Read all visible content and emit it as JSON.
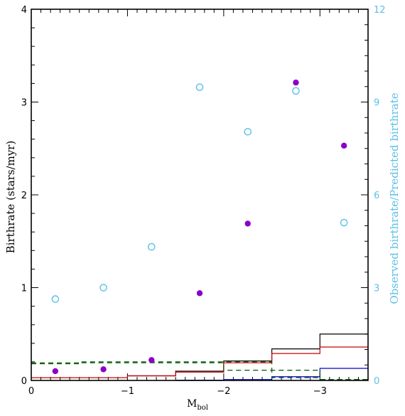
{
  "chart_data": {
    "type": "scatter",
    "xlabel": "M",
    "xlabel_sub": "bol",
    "ylabel_left": "Birthrate (stars/myr)",
    "ylabel_right": "Observed birthrate/Predicted birthrate",
    "xlim": [
      0,
      -3.5
    ],
    "ylim_left": [
      0,
      4
    ],
    "ylim_right": [
      0,
      12
    ],
    "x_ticks": [
      {
        "value": 0,
        "label": "0"
      },
      {
        "value": -1,
        "label": "−1"
      },
      {
        "value": -2,
        "label": "−2"
      },
      {
        "value": -3,
        "label": "−3"
      }
    ],
    "y_left_ticks": [
      {
        "value": 0,
        "label": "0"
      },
      {
        "value": 1,
        "label": "1"
      },
      {
        "value": 2,
        "label": "2"
      },
      {
        "value": 3,
        "label": "3"
      },
      {
        "value": 4,
        "label": "4"
      }
    ],
    "y_right_ticks": [
      {
        "value": 0,
        "label": "0"
      },
      {
        "value": 3,
        "label": "3"
      },
      {
        "value": 6,
        "label": "6"
      },
      {
        "value": 9,
        "label": "9"
      },
      {
        "value": 12,
        "label": "12"
      }
    ],
    "grid": false,
    "colors": {
      "observed": "#8b00c8",
      "ratio": "#5bc0e8",
      "black_hist": "#000000",
      "red_hist": "#cc0000",
      "blue_hist": "#0000cc",
      "green_dashed": "#005500"
    },
    "series_points": [
      {
        "marker": "filled-circle",
        "axis": "left",
        "color": "#8b00c8",
        "x": [
          -0.25,
          -0.75,
          -1.25,
          -1.75,
          -2.25,
          -2.75,
          -3.25
        ],
        "y": [
          0.1,
          0.12,
          0.22,
          0.94,
          1.69,
          3.21,
          2.53
        ]
      },
      {
        "marker": "open-circle",
        "axis": "right",
        "color": "#5bc0e8",
        "x": [
          -0.25,
          -0.75,
          -1.25,
          -1.75,
          -2.25,
          -2.75,
          -3.25
        ],
        "y": [
          2.63,
          3.0,
          4.32,
          9.48,
          8.04,
          9.36,
          5.1
        ]
      }
    ],
    "series_steps": [
      {
        "style": "solid",
        "color": "#000000",
        "bin_edges": [
          0.5,
          -1.0,
          -1.5,
          -2.0,
          -2.5,
          -3.0,
          -3.5
        ],
        "values": [
          0.03,
          0.05,
          0.1,
          0.21,
          0.34,
          0.5
        ]
      },
      {
        "style": "solid",
        "color": "#cc0000",
        "bin_edges": [
          0.5,
          -1.0,
          -1.5,
          -2.0,
          -2.5,
          -3.0,
          -3.5
        ],
        "values": [
          0.03,
          0.05,
          0.09,
          0.19,
          0.29,
          0.36
        ]
      },
      {
        "style": "solid",
        "color": "#0000cc",
        "bin_edges": [
          -1.5,
          -2.0,
          -2.5,
          -3.0,
          -3.5
        ],
        "values": [
          0.003,
          0.01,
          0.04,
          0.13
        ]
      },
      {
        "style": "dashed",
        "color": "#005500",
        "bin_edges": [
          0.0,
          -0.5,
          -1.0,
          -1.5,
          -2.0,
          -2.5,
          -3.0,
          -3.5
        ],
        "values": [
          0.18,
          0.19,
          0.19,
          0.19,
          0.11,
          0.11,
          0.01
        ]
      },
      {
        "style": "dashed",
        "color": "#005500",
        "bin_edges": [
          0.0,
          -0.5,
          -1.0,
          -1.5,
          -2.0,
          -2.5,
          -3.0,
          -3.5
        ],
        "values": [
          0.19,
          0.2,
          0.2,
          0.2,
          0.2,
          0.03,
          0.01
        ]
      }
    ]
  }
}
